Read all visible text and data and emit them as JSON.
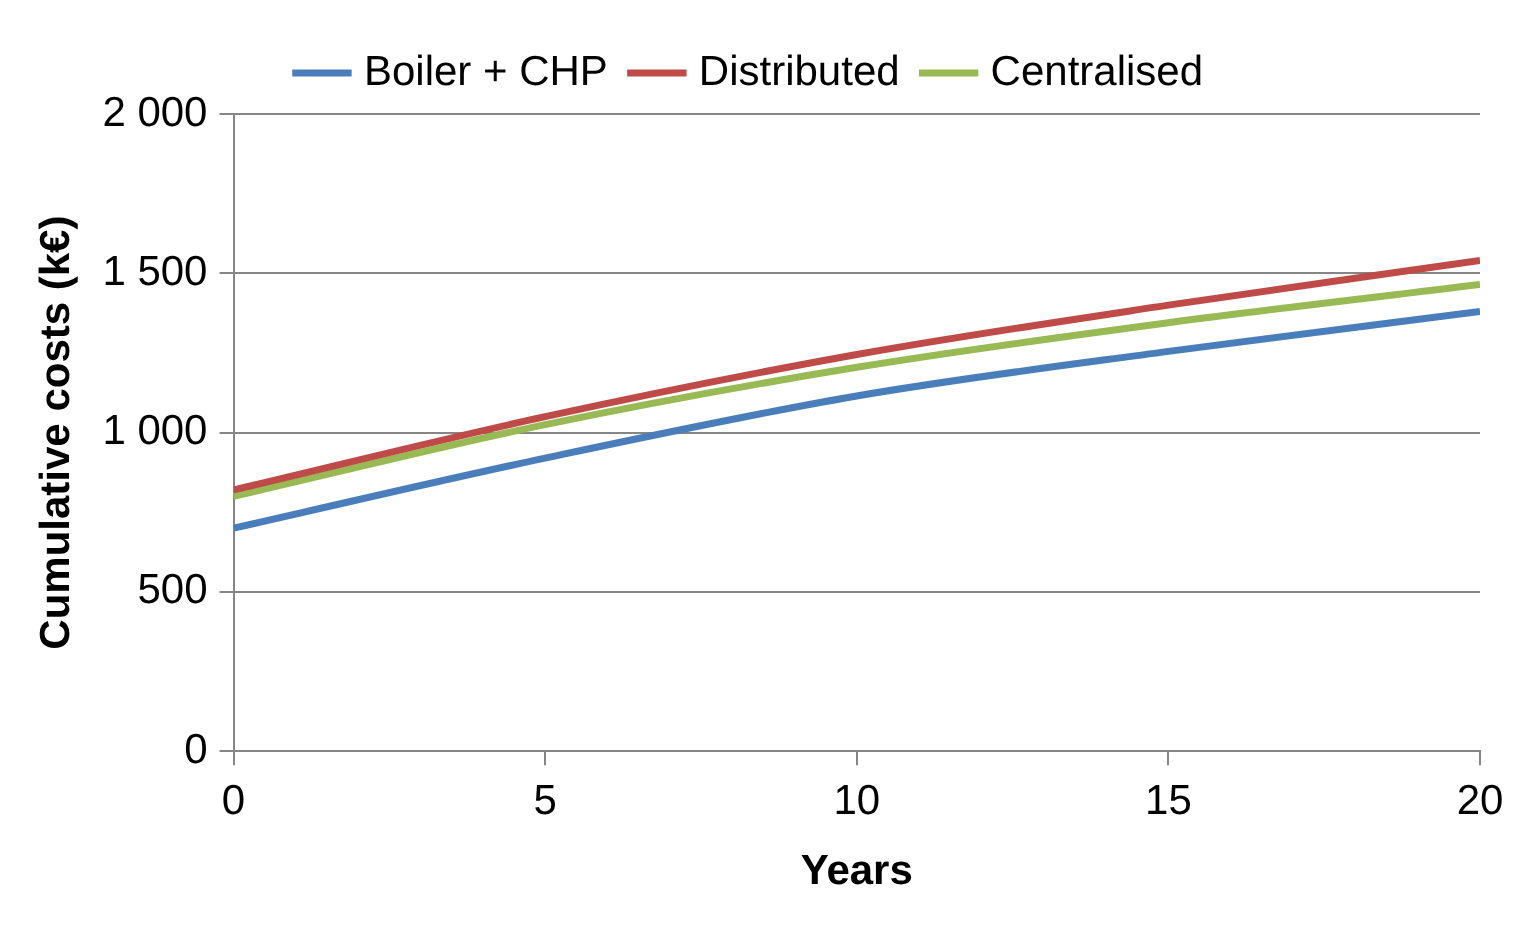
{
  "chart_data": {
    "type": "line",
    "xlabel": "Years",
    "ylabel": "Cumulative costs (k€)",
    "x": [
      0,
      5,
      10,
      15,
      20
    ],
    "series": [
      {
        "name": "Boiler + CHP",
        "color": "#4a7ebb",
        "values": [
          700,
          920,
          1115,
          1255,
          1380
        ]
      },
      {
        "name": "Distributed",
        "color": "#be4b48",
        "values": [
          820,
          1050,
          1245,
          1400,
          1540
        ]
      },
      {
        "name": "Centralised",
        "color": "#98b954",
        "values": [
          800,
          1025,
          1205,
          1345,
          1465
        ]
      }
    ],
    "xlim": [
      0,
      20
    ],
    "xticks": [
      0,
      5,
      10,
      15,
      20
    ],
    "ylim": [
      0,
      2000
    ],
    "yticks": [
      0,
      500,
      {
        "value": 1000,
        "label": "1 000"
      },
      {
        "value": 1500,
        "label": "1 500"
      },
      {
        "value": 2000,
        "label": "2 000"
      }
    ],
    "grid": "y",
    "legend": "top",
    "marker": "none",
    "line_style": "solid"
  }
}
